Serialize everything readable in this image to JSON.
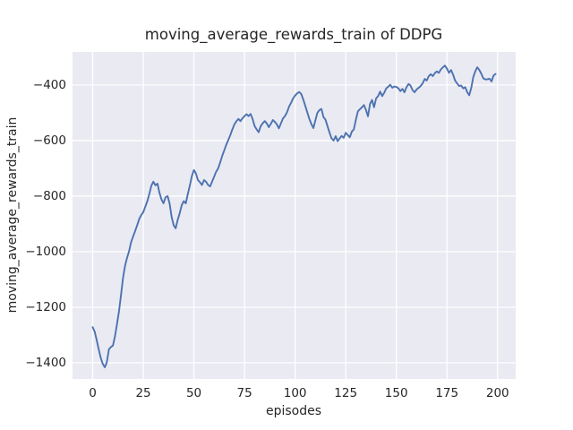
{
  "chart_data": {
    "type": "line",
    "title": "moving_average_rewards_train of DDPG",
    "xlabel": "episodes",
    "ylabel": "moving_average_rewards_train",
    "legend": null,
    "grid": true,
    "x_ticks": [
      0,
      25,
      50,
      75,
      100,
      125,
      150,
      175,
      200
    ],
    "y_ticks": [
      -400,
      -600,
      -800,
      -1000,
      -1200,
      -1400
    ],
    "xlim": [
      -9.95,
      208.95
    ],
    "ylim": [
      -1458,
      -281
    ],
    "colors": {
      "line": "#4c72b0",
      "axes_background": "#eaeaf2",
      "grid": "#ffffff",
      "text": "#262626",
      "figure_background": "#ffffff"
    },
    "x": [
      0,
      1,
      2,
      3,
      4,
      5,
      6,
      7,
      8,
      9,
      10,
      11,
      12,
      13,
      14,
      15,
      16,
      17,
      18,
      19,
      20,
      21,
      22,
      23,
      24,
      25,
      26,
      27,
      28,
      29,
      30,
      31,
      32,
      33,
      34,
      35,
      36,
      37,
      38,
      39,
      40,
      41,
      42,
      43,
      44,
      45,
      46,
      47,
      48,
      49,
      50,
      51,
      52,
      53,
      54,
      55,
      56,
      57,
      58,
      59,
      60,
      61,
      62,
      63,
      64,
      65,
      66,
      67,
      68,
      69,
      70,
      71,
      72,
      73,
      74,
      75,
      76,
      77,
      78,
      79,
      80,
      81,
      82,
      83,
      84,
      85,
      86,
      87,
      88,
      89,
      90,
      91,
      92,
      93,
      94,
      95,
      96,
      97,
      98,
      99,
      100,
      101,
      102,
      103,
      104,
      105,
      106,
      107,
      108,
      109,
      110,
      111,
      112,
      113,
      114,
      115,
      116,
      117,
      118,
      119,
      120,
      121,
      122,
      123,
      124,
      125,
      126,
      127,
      128,
      129,
      130,
      131,
      132,
      133,
      134,
      135,
      136,
      137,
      138,
      139,
      140,
      141,
      142,
      143,
      144,
      145,
      146,
      147,
      148,
      149,
      150,
      151,
      152,
      153,
      154,
      155,
      156,
      157,
      158,
      159,
      160,
      161,
      162,
      163,
      164,
      165,
      166,
      167,
      168,
      169,
      170,
      171,
      172,
      173,
      174,
      175,
      176,
      177,
      178,
      179,
      180,
      181,
      182,
      183,
      184,
      185,
      186,
      187,
      188,
      189,
      190,
      191,
      192,
      193,
      194,
      195,
      196,
      197,
      198,
      199
    ],
    "y": [
      -1272,
      -1288,
      -1318,
      -1352,
      -1382,
      -1404,
      -1416,
      -1398,
      -1352,
      -1343,
      -1338,
      -1305,
      -1262,
      -1215,
      -1155,
      -1095,
      -1050,
      -1022,
      -998,
      -965,
      -945,
      -925,
      -905,
      -882,
      -868,
      -858,
      -838,
      -818,
      -792,
      -762,
      -748,
      -761,
      -755,
      -788,
      -812,
      -826,
      -804,
      -800,
      -826,
      -875,
      -905,
      -916,
      -885,
      -862,
      -832,
      -818,
      -826,
      -792,
      -762,
      -728,
      -706,
      -718,
      -742,
      -750,
      -760,
      -742,
      -748,
      -760,
      -765,
      -748,
      -730,
      -712,
      -700,
      -678,
      -655,
      -635,
      -615,
      -598,
      -580,
      -560,
      -542,
      -530,
      -522,
      -530,
      -520,
      -512,
      -505,
      -512,
      -504,
      -522,
      -548,
      -560,
      -570,
      -548,
      -538,
      -530,
      -538,
      -552,
      -540,
      -526,
      -533,
      -542,
      -556,
      -538,
      -520,
      -512,
      -498,
      -478,
      -464,
      -448,
      -438,
      -430,
      -425,
      -432,
      -452,
      -474,
      -498,
      -522,
      -540,
      -555,
      -528,
      -500,
      -490,
      -486,
      -515,
      -525,
      -548,
      -572,
      -592,
      -600,
      -584,
      -602,
      -592,
      -583,
      -590,
      -572,
      -580,
      -588,
      -568,
      -560,
      -525,
      -495,
      -487,
      -480,
      -472,
      -490,
      -513,
      -468,
      -454,
      -480,
      -448,
      -440,
      -424,
      -440,
      -428,
      -412,
      -406,
      -399,
      -410,
      -405,
      -407,
      -412,
      -422,
      -414,
      -426,
      -408,
      -396,
      -402,
      -418,
      -426,
      -416,
      -410,
      -404,
      -394,
      -378,
      -384,
      -368,
      -361,
      -368,
      -357,
      -351,
      -356,
      -344,
      -336,
      -330,
      -341,
      -356,
      -346,
      -362,
      -384,
      -394,
      -404,
      -402,
      -412,
      -408,
      -425,
      -437,
      -410,
      -372,
      -350,
      -336,
      -346,
      -360,
      -376,
      -380,
      -379,
      -377,
      -387,
      -366,
      -360
    ]
  }
}
